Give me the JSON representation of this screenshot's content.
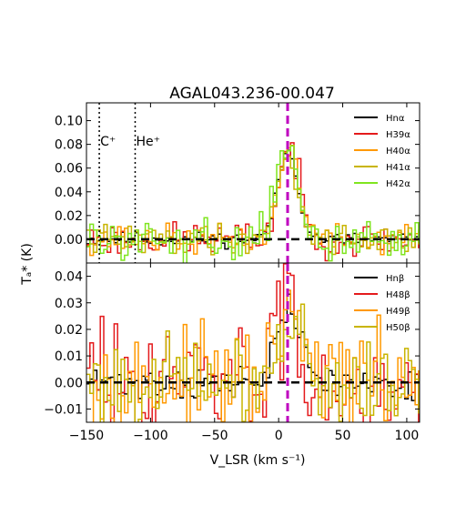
{
  "chart_data": {
    "type": "line",
    "title": "AGAL043.236-00.047",
    "xlabel": "V_LSR (km s⁻¹)",
    "ylabel": "Tₐ* (K)",
    "xlim": [
      -150,
      110
    ],
    "x_ticks": [
      -150,
      -100,
      -50,
      0,
      50,
      100
    ],
    "x_tick_labels": [
      "−150",
      "−100",
      "−50",
      "0",
      "50",
      "100"
    ],
    "vline_dashed": {
      "x": 7,
      "color": "#bf00bf"
    },
    "panels": [
      {
        "ylim": [
          -0.02,
          0.115
        ],
        "y_ticks": [
          0.0,
          0.02,
          0.04,
          0.06,
          0.08,
          0.1
        ],
        "y_tick_labels": [
          "0.00",
          "0.02",
          "0.04",
          "0.06",
          "0.08",
          "0.10"
        ],
        "legend_position": "top-right",
        "annotations": [
          {
            "text": "C⁺",
            "x": -140
          },
          {
            "text": "He⁺",
            "x": -112
          }
        ],
        "series": [
          {
            "name": "Hnα",
            "color": "#000000",
            "noise": 0.003,
            "peak": 0.074,
            "center": 6,
            "width": 8,
            "seed": 11
          },
          {
            "name": "H39α",
            "color": "#e41a1c",
            "noise": 0.007,
            "peak": 0.077,
            "center": 7,
            "width": 8,
            "seed": 23
          },
          {
            "name": "H40α",
            "color": "#ff9900",
            "noise": 0.006,
            "peak": 0.078,
            "center": 7,
            "width": 8,
            "seed": 37
          },
          {
            "name": "H41α",
            "color": "#c8b400",
            "noise": 0.006,
            "peak": 0.071,
            "center": 5,
            "width": 8,
            "seed": 41
          },
          {
            "name": "H42α",
            "color": "#7fe51f",
            "noise": 0.008,
            "peak": 0.082,
            "center": 6,
            "width": 8,
            "seed": 59
          }
        ]
      },
      {
        "ylim": [
          -0.015,
          0.045
        ],
        "y_ticks": [
          -0.01,
          0.0,
          0.01,
          0.02,
          0.03,
          0.04
        ],
        "y_tick_labels": [
          "−0.01",
          "0.00",
          "0.01",
          "0.02",
          "0.03",
          "0.04"
        ],
        "legend_position": "top-right",
        "series": [
          {
            "name": "Hnβ",
            "color": "#000000",
            "noise": 0.003,
            "peak": 0.028,
            "center": 7,
            "width": 9,
            "seed": 71
          },
          {
            "name": "H48β",
            "color": "#e41a1c",
            "noise": 0.012,
            "peak": 0.036,
            "center": 6,
            "width": 7,
            "seed": 83
          },
          {
            "name": "H49β",
            "color": "#ff9900",
            "noise": 0.009,
            "peak": 0.024,
            "center": 8,
            "width": 9,
            "seed": 97
          },
          {
            "name": "H50β",
            "color": "#c8b400",
            "noise": 0.008,
            "peak": 0.022,
            "center": 8,
            "width": 9,
            "seed": 101
          }
        ]
      }
    ]
  }
}
